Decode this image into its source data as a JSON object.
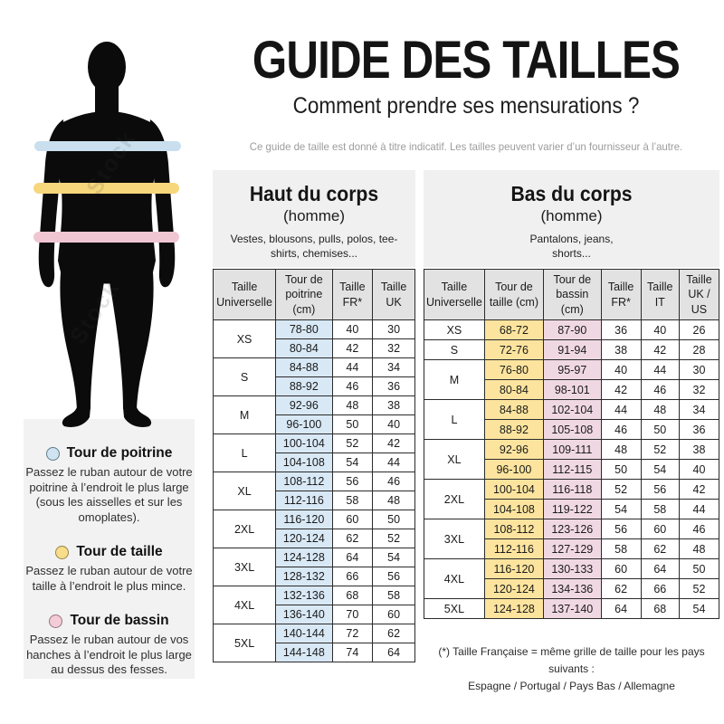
{
  "header": {
    "title": "GUIDE DES TAILLES",
    "subtitle": "Comment prendre ses mensurations ?",
    "disclaimer": "Ce guide de taille est donné à titre indicatif. Les tailles peuvent varier d’un fournisseur à l’autre."
  },
  "figure": {
    "watermark": "Stock",
    "silhouette_color": "#0b0b0b",
    "bands": [
      {
        "name": "tour-de-poitrine",
        "color": "#c9dfee"
      },
      {
        "name": "tour-de-taille",
        "color": "#f6d77c"
      },
      {
        "name": "tour-de-bassin",
        "color": "#f0c6d2"
      }
    ]
  },
  "legend": {
    "items": [
      {
        "title": "Tour de poitrine",
        "color": "#cfe3f0",
        "border": "#5f7c8e",
        "text": "Passez le ruban autour de votre poitrine à l’endroit le plus large (sous les aisselles et sur les omoplates)."
      },
      {
        "title": "Tour de taille",
        "color": "#f8dd8a",
        "border": "#9a824a",
        "text": "Passez le ruban autour de votre taille à l’endroit le plus mince."
      },
      {
        "title": "Tour de bassin",
        "color": "#f3ccd8",
        "border": "#9a7280",
        "text": "Passez le ruban autour de vos hanches à l’endroit le plus large au dessus des fesses."
      }
    ]
  },
  "tables": {
    "haut": {
      "title": "Haut du corps",
      "subtitle": "(homme)",
      "description": "Vestes, blousons, pulls, polos, tee-shirts, chemises...",
      "columns": [
        "Taille Universelle",
        "Tour de poitrine (cm)",
        "Taille FR*",
        "Taille UK"
      ],
      "col_widths": [
        "31%",
        "28%",
        "20%",
        "21%"
      ],
      "highlight_cols": {
        "0": "#d8e8f5"
      },
      "groups": [
        {
          "size": "XS",
          "rows": [
            [
              "78-80",
              "40",
              "30"
            ],
            [
              "80-84",
              "42",
              "32"
            ]
          ]
        },
        {
          "size": "S",
          "rows": [
            [
              "84-88",
              "44",
              "34"
            ],
            [
              "88-92",
              "46",
              "36"
            ]
          ]
        },
        {
          "size": "M",
          "rows": [
            [
              "92-96",
              "48",
              "38"
            ],
            [
              "96-100",
              "50",
              "40"
            ]
          ]
        },
        {
          "size": "L",
          "rows": [
            [
              "100-104",
              "52",
              "42"
            ],
            [
              "104-108",
              "54",
              "44"
            ]
          ]
        },
        {
          "size": "XL",
          "rows": [
            [
              "108-112",
              "56",
              "46"
            ],
            [
              "112-116",
              "58",
              "48"
            ]
          ]
        },
        {
          "size": "2XL",
          "rows": [
            [
              "116-120",
              "60",
              "50"
            ],
            [
              "120-124",
              "62",
              "52"
            ]
          ]
        },
        {
          "size": "3XL",
          "rows": [
            [
              "124-128",
              "64",
              "54"
            ],
            [
              "128-132",
              "66",
              "56"
            ]
          ]
        },
        {
          "size": "4XL",
          "rows": [
            [
              "132-136",
              "68",
              "58"
            ],
            [
              "136-140",
              "70",
              "60"
            ]
          ]
        },
        {
          "size": "5XL",
          "rows": [
            [
              "140-144",
              "72",
              "62"
            ],
            [
              "144-148",
              "74",
              "64"
            ]
          ]
        }
      ]
    },
    "bas": {
      "title": "Bas du corps",
      "subtitle": "(homme)",
      "description": "Pantalons, jeans, shorts...",
      "columns": [
        "Taille Universelle",
        "Tour de taille (cm)",
        "Tour de bassin (cm)",
        "Taille FR*",
        "Taille IT",
        "Taille UK / US"
      ],
      "col_widths": [
        "20.5%",
        "20%",
        "19.5%",
        "13.5%",
        "13%",
        "13.5%"
      ],
      "highlight_cols": {
        "0": "#fce49e",
        "1": "#f0d8e2"
      },
      "groups": [
        {
          "size": "XS",
          "rows": [
            [
              "68-72",
              "87-90",
              "36",
              "40",
              "26"
            ]
          ]
        },
        {
          "size": "S",
          "rows": [
            [
              "72-76",
              "91-94",
              "38",
              "42",
              "28"
            ]
          ]
        },
        {
          "size": "M",
          "rows": [
            [
              "76-80",
              "95-97",
              "40",
              "44",
              "30"
            ],
            [
              "80-84",
              "98-101",
              "42",
              "46",
              "32"
            ]
          ]
        },
        {
          "size": "L",
          "rows": [
            [
              "84-88",
              "102-104",
              "44",
              "48",
              "34"
            ],
            [
              "88-92",
              "105-108",
              "46",
              "50",
              "36"
            ]
          ]
        },
        {
          "size": "XL",
          "rows": [
            [
              "92-96",
              "109-111",
              "48",
              "52",
              "38"
            ],
            [
              "96-100",
              "112-115",
              "50",
              "54",
              "40"
            ]
          ]
        },
        {
          "size": "2XL",
          "rows": [
            [
              "100-104",
              "116-118",
              "52",
              "56",
              "42"
            ],
            [
              "104-108",
              "119-122",
              "54",
              "58",
              "44"
            ]
          ]
        },
        {
          "size": "3XL",
          "rows": [
            [
              "108-112",
              "123-126",
              "56",
              "60",
              "46"
            ],
            [
              "112-116",
              "127-129",
              "58",
              "62",
              "48"
            ]
          ]
        },
        {
          "size": "4XL",
          "rows": [
            [
              "116-120",
              "130-133",
              "60",
              "64",
              "50"
            ],
            [
              "120-124",
              "134-136",
              "62",
              "66",
              "52"
            ]
          ]
        },
        {
          "size": "5XL",
          "rows": [
            [
              "124-128",
              "137-140",
              "64",
              "68",
              "54"
            ]
          ]
        }
      ]
    }
  },
  "footnote": {
    "line1": "(*) Taille Française = même grille de taille pour les pays suivants :",
    "line2": "Espagne / Portugal / Pays Bas / Allemagne"
  }
}
